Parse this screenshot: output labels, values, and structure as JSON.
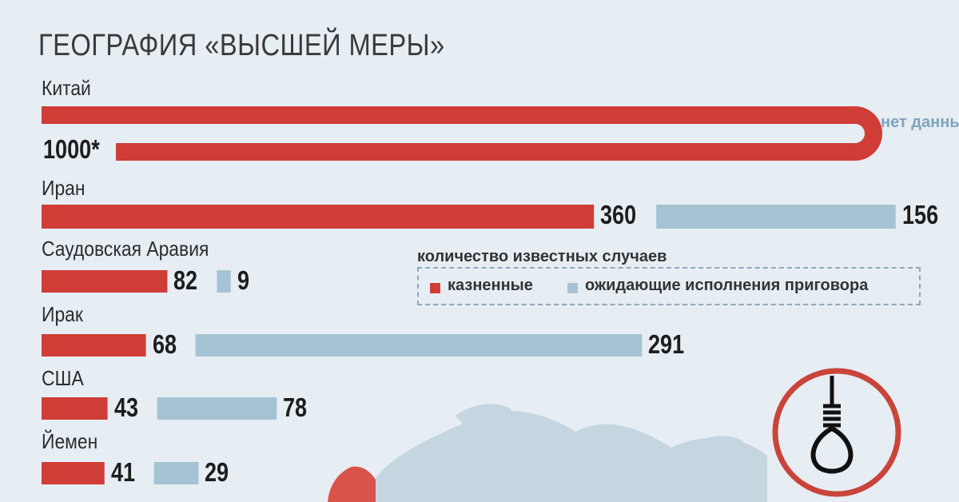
{
  "title": "ГЕОГРАФИЯ «ВЫСШЕЙ МЕРЫ»",
  "legend": {
    "title": "количество известных случаев",
    "executed": "казненные",
    "awaiting": "ожидающие исполнения приговора"
  },
  "colors": {
    "executed": "#cf3d36",
    "awaiting": "#a6c3d3",
    "map": "#c5d6e1",
    "map_highlight": "#d9534a",
    "noose_ring": "#c9453c"
  },
  "icons": [
    "noose-icon",
    "world-map"
  ],
  "chart_data": {
    "type": "bar",
    "orientation": "horizontal",
    "stacked": false,
    "legend_position": "middle-right",
    "grid": false,
    "categories": [
      "Китай",
      "Иран",
      "Саудовская Аравия",
      "Ирак",
      "США",
      "Йемен"
    ],
    "series": [
      {
        "name": "казненные",
        "values": [
          1000,
          360,
          82,
          68,
          43,
          41
        ],
        "labels": [
          "1000*",
          "360",
          "82",
          "68",
          "43",
          "41"
        ]
      },
      {
        "name": "ожидающие исполнения приговора",
        "values": [
          null,
          156,
          9,
          291,
          78,
          29
        ],
        "labels": [
          "нет данных",
          "156",
          "9",
          "291",
          "78",
          "29"
        ]
      }
    ]
  }
}
